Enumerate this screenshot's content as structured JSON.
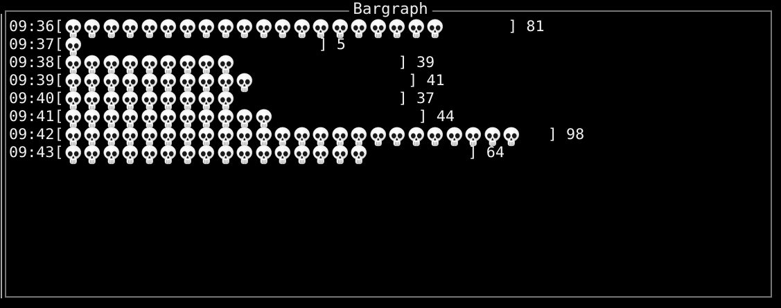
{
  "window": {
    "title": "Bargraph"
  },
  "symbols": {
    "open_bracket": "[",
    "close_bracket": "]",
    "bar_glyph": "skull-emoji"
  },
  "colors": {
    "background": "#000000",
    "panel_border": "#777777",
    "text": "#f2f2f2",
    "skull_light": "#ffffff",
    "skull_shade": "#c6c6c6",
    "skull_dark": "#1a1a1a"
  },
  "chart_data": {
    "type": "bar",
    "title": "Bargraph",
    "orientation": "horizontal",
    "categories": [
      "09:36",
      "09:37",
      "09:38",
      "09:39",
      "09:40",
      "09:41",
      "09:42",
      "09:43"
    ],
    "values": [
      81,
      5,
      39,
      41,
      37,
      44,
      98,
      64
    ],
    "bar_symbol": "skull-emoji",
    "units_per_symbol": 4,
    "symbol_counts": [
      20,
      1,
      9,
      10,
      9,
      11,
      24,
      16
    ],
    "bar_track_cells": 27,
    "xlim": [
      0,
      108
    ],
    "grid": false,
    "legend": false,
    "xlabel": "",
    "ylabel": ""
  },
  "rows": [
    {
      "time": "09:36",
      "value": 81,
      "skulls": 20
    },
    {
      "time": "09:37",
      "value": 5,
      "skulls": 1
    },
    {
      "time": "09:38",
      "value": 39,
      "skulls": 9
    },
    {
      "time": "09:39",
      "value": 41,
      "skulls": 10
    },
    {
      "time": "09:40",
      "value": 37,
      "skulls": 9
    },
    {
      "time": "09:41",
      "value": 44,
      "skulls": 11
    },
    {
      "time": "09:42",
      "value": 98,
      "skulls": 24
    },
    {
      "time": "09:43",
      "value": 64,
      "skulls": 16
    }
  ]
}
